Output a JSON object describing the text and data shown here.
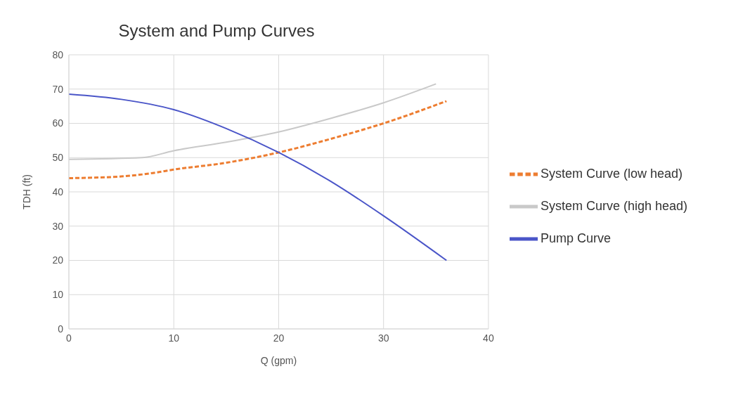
{
  "chart_data": {
    "type": "line",
    "title": "System and Pump Curves",
    "xlabel": "Q (gpm)",
    "ylabel": "TDH (ft)",
    "xlim": [
      0,
      40
    ],
    "xticks": [
      0,
      10,
      20,
      30,
      40
    ],
    "ylim": [
      0,
      80
    ],
    "yticks": [
      0,
      10,
      20,
      30,
      40,
      50,
      60,
      70,
      80
    ],
    "grid": true,
    "legend": "right",
    "marker": "none",
    "series": [
      {
        "name": "System Curve (low head)",
        "color": "#ed7d31",
        "line_style": "dashed",
        "x": [
          0,
          5,
          8,
          10,
          15,
          20,
          25,
          30,
          36
        ],
        "values": [
          44,
          44.5,
          45.5,
          46.5,
          48.5,
          51.5,
          55.5,
          60,
          66.5
        ]
      },
      {
        "name": "System Curve (high head)",
        "color": "#c9c9c9",
        "line_style": "solid",
        "x": [
          0,
          7,
          10,
          15,
          20,
          25,
          30,
          35
        ],
        "values": [
          49.5,
          50,
          52,
          54.5,
          57.5,
          61.5,
          66,
          71.5
        ]
      },
      {
        "name": "Pump Curve",
        "color": "#4a55c8",
        "line_style": "solid",
        "x": [
          0,
          5,
          10,
          15,
          20,
          25,
          30,
          36
        ],
        "values": [
          68.5,
          67,
          64,
          58.5,
          51.5,
          43,
          33,
          20
        ]
      }
    ]
  }
}
